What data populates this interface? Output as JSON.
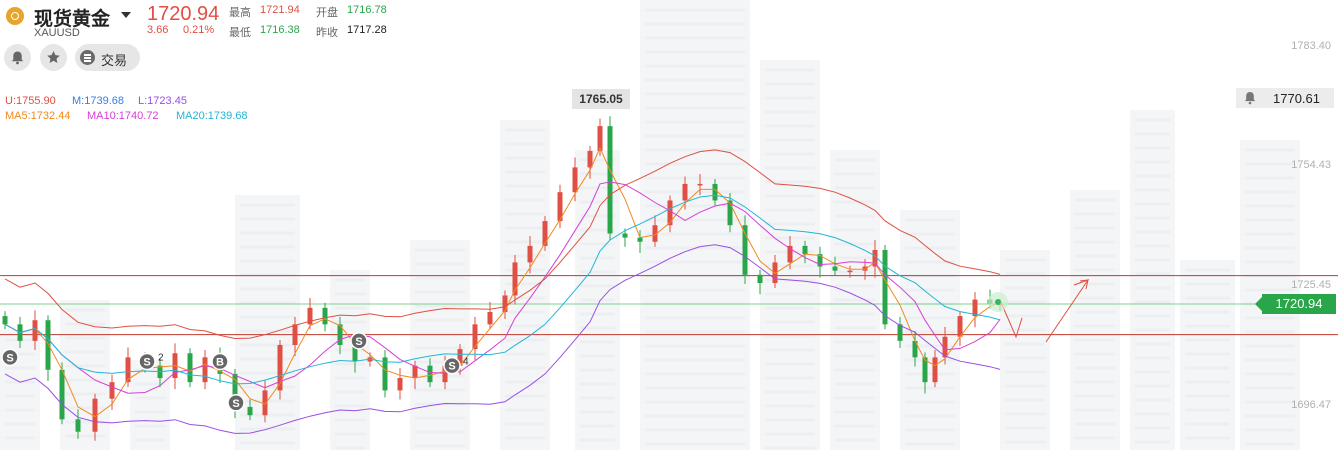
{
  "symbol": {
    "name": "现货黄金",
    "code": "XAUUSD"
  },
  "quote": {
    "price": "1720.94",
    "change": "3.66",
    "change_pct": "0.21%",
    "high_label": "最高",
    "high": "1721.94",
    "open_label": "开盘",
    "open": "1716.78",
    "low_label": "最低",
    "low": "1716.38",
    "prev_label": "昨收",
    "prev_close": "1717.28"
  },
  "actions": {
    "alert_icon": "bell-icon",
    "favorite_icon": "star-icon",
    "trade_icon": "list-icon",
    "trade_label": "交易"
  },
  "indicators": {
    "boll_u": "U:1755.90",
    "boll_m": "M:1739.68",
    "boll_l": "L:1723.45",
    "ma5": "MA5:1732.44",
    "ma10": "MA10:1740.72",
    "ma20": "MA20:1739.68"
  },
  "colors": {
    "up": "#e04f43",
    "down": "#2aa64a",
    "ma5": "#f08a1c",
    "ma10": "#d63fd6",
    "ma20": "#22b6d6",
    "boll_u": "#e04f43",
    "boll_l": "#9a4ee6"
  },
  "chart_data": {
    "type": "candlestick",
    "yticks": [
      "1783.40",
      "1754.43",
      "1725.45",
      "1696.47"
    ],
    "max_label": "1765.05",
    "alert_price": "1770.61",
    "current_price": "1720.94",
    "support_line": 1713.5,
    "resistance_line": 1727.8,
    "ylim": [
      1692,
      1790
    ],
    "markers": [
      {
        "text": "S"
      },
      {
        "text": "S",
        "count": "2"
      },
      {
        "text": "B"
      },
      {
        "text": "S"
      },
      {
        "text": "S"
      },
      {
        "text": "S",
        "count": "4"
      }
    ]
  }
}
